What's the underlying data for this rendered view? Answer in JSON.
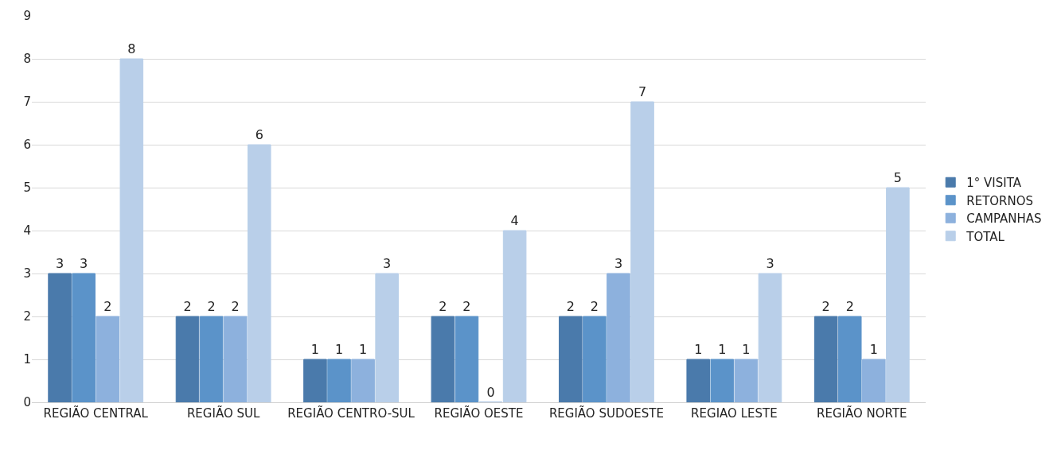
{
  "chart_data": {
    "type": "bar",
    "categories": [
      "REGIÃO CENTRAL",
      "REGIÃO SUL",
      "REGIÃO CENTRO-SUL",
      "REGIÃO OESTE",
      "REGIÃO SUDOESTE",
      "REGIAO LESTE",
      "REGIÃO NORTE"
    ],
    "series": [
      {
        "name": "1° VISITA",
        "color": "#4a7aab",
        "values": [
          3,
          2,
          1,
          2,
          2,
          1,
          2
        ]
      },
      {
        "name": "RETORNOS",
        "color": "#5b93c9",
        "values": [
          3,
          2,
          1,
          2,
          2,
          1,
          2
        ]
      },
      {
        "name": "CAMPANHAS",
        "color": "#8db1dd",
        "values": [
          2,
          2,
          1,
          0,
          3,
          1,
          1
        ]
      },
      {
        "name": "TOTAL",
        "color": "#b9cfe9",
        "values": [
          8,
          6,
          3,
          4,
          7,
          3,
          5
        ]
      }
    ],
    "ylim": [
      0,
      9
    ],
    "yticks": [
      0,
      1,
      2,
      3,
      4,
      5,
      6,
      7,
      8,
      9
    ],
    "grid": "y",
    "legend": "right",
    "data_labels": true
  }
}
